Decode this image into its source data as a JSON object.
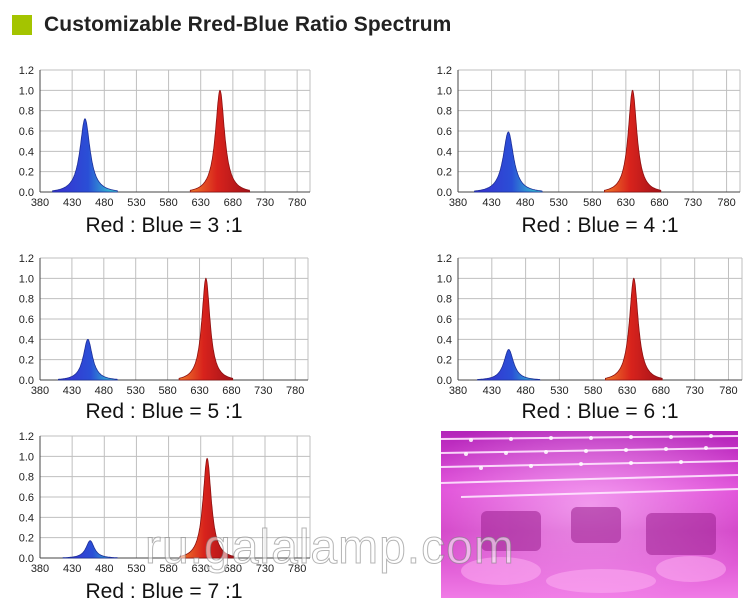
{
  "header": {
    "title": "Customizable Rred-Blue Ratio Spectrum",
    "accent_color": "#a4c400"
  },
  "colors": {
    "red_peak": "#d8231c",
    "blue_peak": "#2a4fd6",
    "cyan_tail": "#3ad7d0",
    "grid": "#bfbfbf",
    "axis": "#444444"
  },
  "chart_data": [
    {
      "type": "area",
      "caption": "Red : Blue = 3 :1",
      "x_ticks": [
        380,
        430,
        480,
        530,
        580,
        630,
        680,
        730,
        780
      ],
      "y_ticks": [
        "0.0",
        "0.2",
        "0.4",
        "0.6",
        "0.8",
        "1.0",
        "1.2"
      ],
      "xlim": [
        380,
        800
      ],
      "ylim": [
        0,
        1.2
      ],
      "grid": true,
      "series": [
        {
          "peak_nm": 450,
          "peak_value": 0.72,
          "width_nm": 12
        },
        {
          "peak_nm": 660,
          "peak_value": 1.0,
          "width_nm": 11
        }
      ]
    },
    {
      "type": "area",
      "caption": "Red : Blue = 4 :1",
      "x_ticks": [
        380,
        430,
        480,
        530,
        580,
        630,
        680,
        730,
        780
      ],
      "y_ticks": [
        "0.0",
        "0.2",
        "0.4",
        "0.6",
        "0.8",
        "1.0",
        "1.2"
      ],
      "xlim": [
        380,
        800
      ],
      "ylim": [
        0,
        1.2
      ],
      "grid": true,
      "series": [
        {
          "peak_nm": 455,
          "peak_value": 0.59,
          "width_nm": 12
        },
        {
          "peak_nm": 640,
          "peak_value": 1.0,
          "width_nm": 10
        }
      ]
    },
    {
      "type": "area",
      "caption": "Red : Blue = 5 :1",
      "x_ticks": [
        380,
        430,
        480,
        530,
        580,
        630,
        680,
        730,
        780
      ],
      "y_ticks": [
        "0.0",
        "0.2",
        "0.4",
        "0.6",
        "0.8",
        "1.0",
        "1.2"
      ],
      "xlim": [
        380,
        800
      ],
      "ylim": [
        0,
        1.2
      ],
      "grid": true,
      "series": [
        {
          "peak_nm": 455,
          "peak_value": 0.4,
          "width_nm": 11
        },
        {
          "peak_nm": 640,
          "peak_value": 1.0,
          "width_nm": 10
        }
      ]
    },
    {
      "type": "area",
      "caption": "Red : Blue = 6 :1",
      "x_ticks": [
        380,
        430,
        480,
        530,
        580,
        630,
        680,
        730,
        780
      ],
      "y_ticks": [
        "0.0",
        "0.2",
        "0.4",
        "0.6",
        "0.8",
        "1.0",
        "1.2"
      ],
      "xlim": [
        380,
        800
      ],
      "ylim": [
        0,
        1.2
      ],
      "grid": true,
      "series": [
        {
          "peak_nm": 455,
          "peak_value": 0.3,
          "width_nm": 11
        },
        {
          "peak_nm": 640,
          "peak_value": 1.0,
          "width_nm": 10
        }
      ]
    },
    {
      "type": "area",
      "caption": "Red : Blue = 7 :1",
      "x_ticks": [
        380,
        430,
        480,
        530,
        580,
        630,
        680,
        730,
        780
      ],
      "y_ticks": [
        "0.0",
        "0.2",
        "0.4",
        "0.6",
        "0.8",
        "1.0",
        "1.2"
      ],
      "xlim": [
        380,
        800
      ],
      "ylim": [
        0,
        1.2
      ],
      "grid": true,
      "series": [
        {
          "peak_nm": 458,
          "peak_value": 0.17,
          "width_nm": 10
        },
        {
          "peak_nm": 640,
          "peak_value": 0.98,
          "width_nm": 10
        }
      ]
    }
  ],
  "photo": {
    "subject": "grow-light-greenhouse-photo",
    "dominant_color": "#e23bd6"
  },
  "watermark": {
    "text": "ru.galalamp.com"
  }
}
